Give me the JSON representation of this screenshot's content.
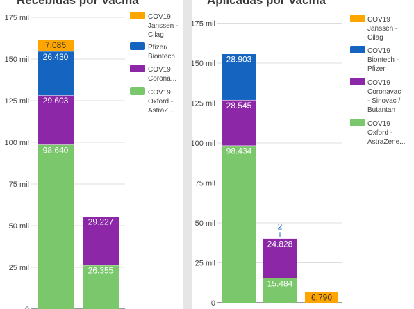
{
  "panels": [
    {
      "title": "Recebidas por Vacina",
      "chart_data": {
        "type": "bar",
        "stacked": true,
        "y_ticks": [
          "0",
          "25 mil",
          "50 mil",
          "75 mil",
          "100 mil",
          "125 mil",
          "150 mil",
          "175 mil"
        ],
        "ylim": [
          0,
          175000
        ],
        "series": [
          {
            "name": "COV19 Oxford - AstraZ...",
            "color": "#7bc86c",
            "values": [
              98640,
              26355
            ]
          },
          {
            "name": "COV19 Corona...",
            "color": "#8c27a8",
            "values": [
              29603,
              29227
            ]
          },
          {
            "name": "Pfizer/ Biontech",
            "color": "#1565c0",
            "values": [
              26430,
              0
            ]
          },
          {
            "name": "COV19 Janssen - Cilag",
            "color": "#ffa500",
            "values": [
              7085,
              0
            ]
          }
        ],
        "value_labels": [
          [
            "98.640",
            "26.355"
          ],
          [
            "29.603",
            "29.227"
          ],
          [
            "26.430",
            ""
          ],
          [
            "7.085",
            ""
          ]
        ],
        "legend_position": "right",
        "legend": [
          {
            "lines": [
              "COV19",
              "Janssen -",
              "Cilag"
            ],
            "color": "#ffa500"
          },
          {
            "lines": [
              "Pfizer/",
              "Biontech"
            ],
            "color": "#1565c0"
          },
          {
            "lines": [
              "COV19",
              "Corona..."
            ],
            "color": "#8c27a8"
          },
          {
            "lines": [
              "COV19",
              "Oxford -",
              "AstraZ..."
            ],
            "color": "#7bc86c"
          }
        ]
      }
    },
    {
      "title": "Aplicadas por Vacina",
      "chart_data": {
        "type": "bar",
        "stacked": true,
        "y_ticks": [
          "0",
          "25 mil",
          "50 mil",
          "75 mil",
          "100 mil",
          "125 mil",
          "150 mil",
          "175 mil"
        ],
        "ylim": [
          0,
          175000
        ],
        "series": [
          {
            "name": "COV19 Oxford - AstraZene...",
            "color": "#7bc86c",
            "values": [
              98434,
              15484,
              0
            ]
          },
          {
            "name": "COV19 Coronavac - Sinovac / Butantan",
            "color": "#8c27a8",
            "values": [
              28545,
              24828,
              0
            ]
          },
          {
            "name": "COV19 Biontech - Pfizer",
            "color": "#1565c0",
            "values": [
              28903,
              2,
              0
            ]
          },
          {
            "name": "COV19 Janssen - Cilag",
            "color": "#ffa500",
            "values": [
              0,
              0,
              6790
            ]
          }
        ],
        "value_labels": [
          [
            "98.434",
            "15.484",
            ""
          ],
          [
            "28.545",
            "24.828",
            ""
          ],
          [
            "28.903",
            "2",
            ""
          ],
          [
            "",
            "",
            "6.790"
          ]
        ],
        "legend_position": "right",
        "legend": [
          {
            "lines": [
              "COV19",
              "Janssen -",
              "Cilag"
            ],
            "color": "#ffa500"
          },
          {
            "lines": [
              "COV19",
              "Biontech -",
              "Pfizer"
            ],
            "color": "#1565c0"
          },
          {
            "lines": [
              "COV19",
              "Coronavac",
              "- Sinovac /",
              "Butantan"
            ],
            "color": "#8c27a8"
          },
          {
            "lines": [
              "COV19",
              "Oxford -",
              "AstraZene..."
            ],
            "color": "#7bc86c"
          }
        ]
      }
    }
  ]
}
